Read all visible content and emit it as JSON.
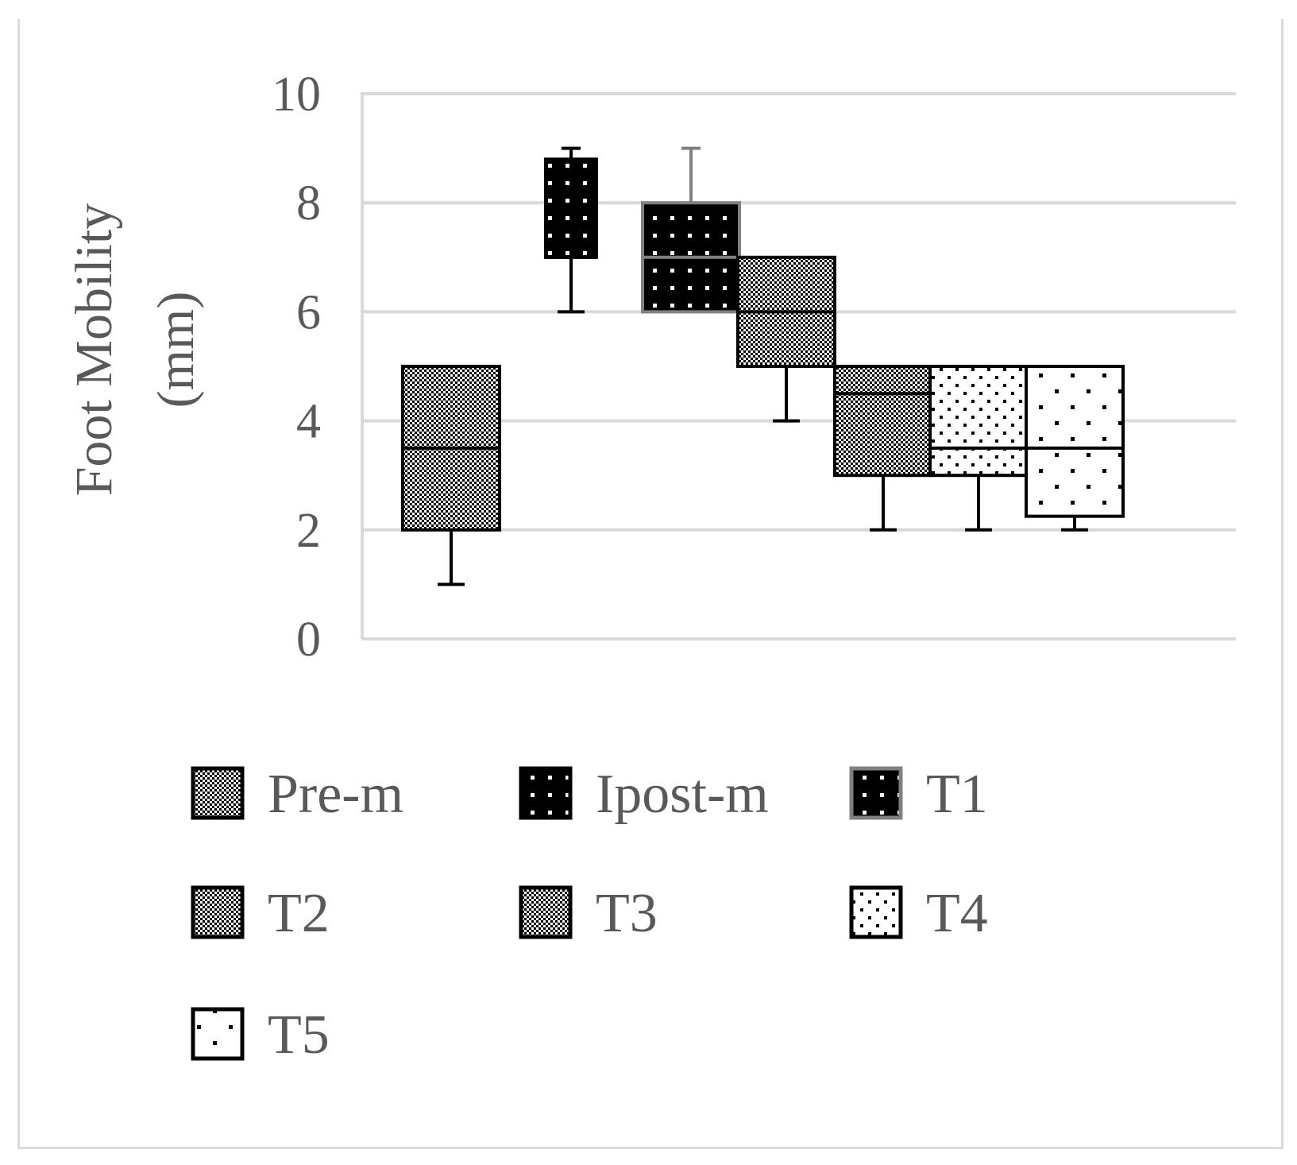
{
  "chart_data": {
    "type": "boxplot",
    "ylabel_line1": "Foot Mobility",
    "ylabel_line2": "(mm)",
    "ylim": [
      0,
      10
    ],
    "yticks": [
      0,
      2,
      4,
      6,
      8,
      10
    ],
    "grid": true,
    "legend_position": "bottom",
    "series": [
      {
        "name": "Pre-m",
        "min": 1,
        "q1": 2,
        "median": 3.5,
        "q3": 5,
        "max": 5,
        "pattern": "check",
        "box_stroke": "#000000",
        "whisker_color": "#000000"
      },
      {
        "name": "Ipost-m",
        "min": 6,
        "q1": 7,
        "median": 7,
        "q3": 8.8,
        "max": 9,
        "pattern": "dots-dark",
        "box_stroke": "#000000",
        "whisker_color": "#000000"
      },
      {
        "name": "T1",
        "min": 6,
        "q1": 6,
        "median": 7,
        "q3": 8,
        "max": 9,
        "pattern": "dots-dark",
        "box_stroke": "#808080",
        "whisker_color": "#808080"
      },
      {
        "name": "T2",
        "min": 4,
        "q1": 5,
        "median": 6,
        "q3": 7,
        "max": 7,
        "pattern": "check",
        "box_stroke": "#000000",
        "whisker_color": "#000000"
      },
      {
        "name": "T3",
        "min": 2,
        "q1": 3,
        "median": 4.5,
        "q3": 5,
        "max": 5,
        "pattern": "check",
        "box_stroke": "#000000",
        "whisker_color": "#000000"
      },
      {
        "name": "T4",
        "min": 2,
        "q1": 3,
        "median": 3.5,
        "q3": 5,
        "max": 5,
        "pattern": "dots-med",
        "box_stroke": "#000000",
        "whisker_color": "#000000"
      },
      {
        "name": "T5",
        "min": 2,
        "q1": 2.25,
        "median": 3.5,
        "q3": 5,
        "max": 5,
        "pattern": "dots-sparse",
        "box_stroke": "#000000",
        "whisker_color": "#000000"
      }
    ],
    "colors": {
      "grid": "#d9d9d9",
      "text": "#595959"
    }
  }
}
